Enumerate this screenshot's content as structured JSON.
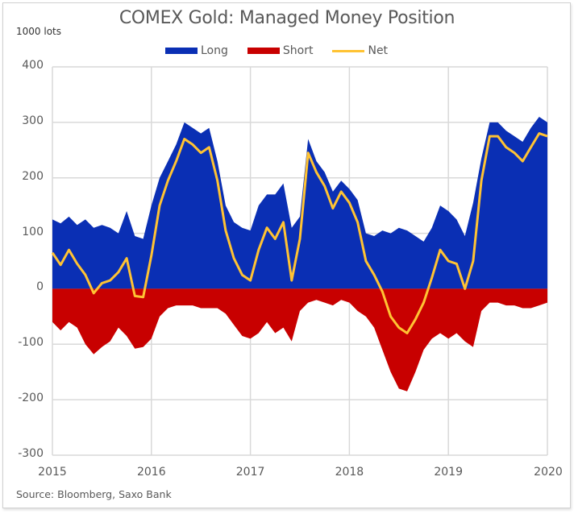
{
  "chart_data": {
    "type": "area",
    "title": "COMEX Gold: Managed Money Position",
    "ylabel": "1000 lots",
    "xlabel": "",
    "source": "Source: Bloomberg, Saxo Bank",
    "ylim": [
      -300,
      400
    ],
    "yticks": [
      "400",
      "300",
      "200",
      "100",
      "0",
      "-100",
      "-200",
      "-300"
    ],
    "ytick_values": [
      400,
      300,
      200,
      100,
      0,
      -100,
      -200,
      -300
    ],
    "xlim": [
      2015,
      2020
    ],
    "xticks": [
      "2015",
      "2016",
      "2017",
      "2018",
      "2019",
      "2020"
    ],
    "xtick_values": [
      2015,
      2016,
      2017,
      2018,
      2019,
      2020
    ],
    "grid": true,
    "legend_position": "top-center",
    "legend": [
      "Long",
      "Short",
      "Net"
    ],
    "colors": {
      "long": "#0a2fb4",
      "short": "#c80000",
      "net": "#ffc333",
      "grid": "#d9d9d9",
      "text": "#595959"
    },
    "sampling": "monthly, Jan 2015 to Jan 2020",
    "series": [
      {
        "name": "Long",
        "values": [
          125,
          118,
          130,
          115,
          125,
          110,
          115,
          110,
          100,
          140,
          95,
          90,
          150,
          200,
          230,
          260,
          300,
          290,
          280,
          290,
          230,
          150,
          120,
          110,
          105,
          150,
          170,
          170,
          190,
          110,
          130,
          270,
          230,
          210,
          175,
          195,
          180,
          160,
          100,
          95,
          105,
          100,
          110,
          105,
          95,
          85,
          110,
          150,
          140,
          125,
          95,
          155,
          235,
          300,
          300,
          285,
          275,
          265,
          290,
          310,
          300
        ]
      },
      {
        "name": "Short",
        "values": [
          -60,
          -75,
          -60,
          -70,
          -100,
          -118,
          -105,
          -95,
          -70,
          -85,
          -108,
          -105,
          -90,
          -50,
          -35,
          -30,
          -30,
          -30,
          -35,
          -35,
          -35,
          -45,
          -65,
          -85,
          -90,
          -80,
          -60,
          -80,
          -70,
          -95,
          -40,
          -25,
          -20,
          -25,
          -30,
          -20,
          -25,
          -40,
          -50,
          -70,
          -110,
          -150,
          -180,
          -185,
          -150,
          -110,
          -90,
          -80,
          -90,
          -80,
          -95,
          -105,
          -40,
          -25,
          -25,
          -30,
          -30,
          -35,
          -35,
          -30,
          -25
        ]
      },
      {
        "name": "Net",
        "values": [
          65,
          43,
          70,
          45,
          25,
          -8,
          10,
          15,
          30,
          55,
          -13,
          -15,
          60,
          150,
          195,
          230,
          270,
          260,
          245,
          255,
          195,
          105,
          55,
          25,
          15,
          70,
          110,
          90,
          120,
          15,
          90,
          245,
          210,
          185,
          145,
          175,
          155,
          120,
          50,
          25,
          -5,
          -50,
          -70,
          -80,
          -55,
          -25,
          20,
          70,
          50,
          45,
          0,
          50,
          195,
          275,
          275,
          255,
          245,
          230,
          255,
          280,
          275
        ]
      }
    ]
  }
}
